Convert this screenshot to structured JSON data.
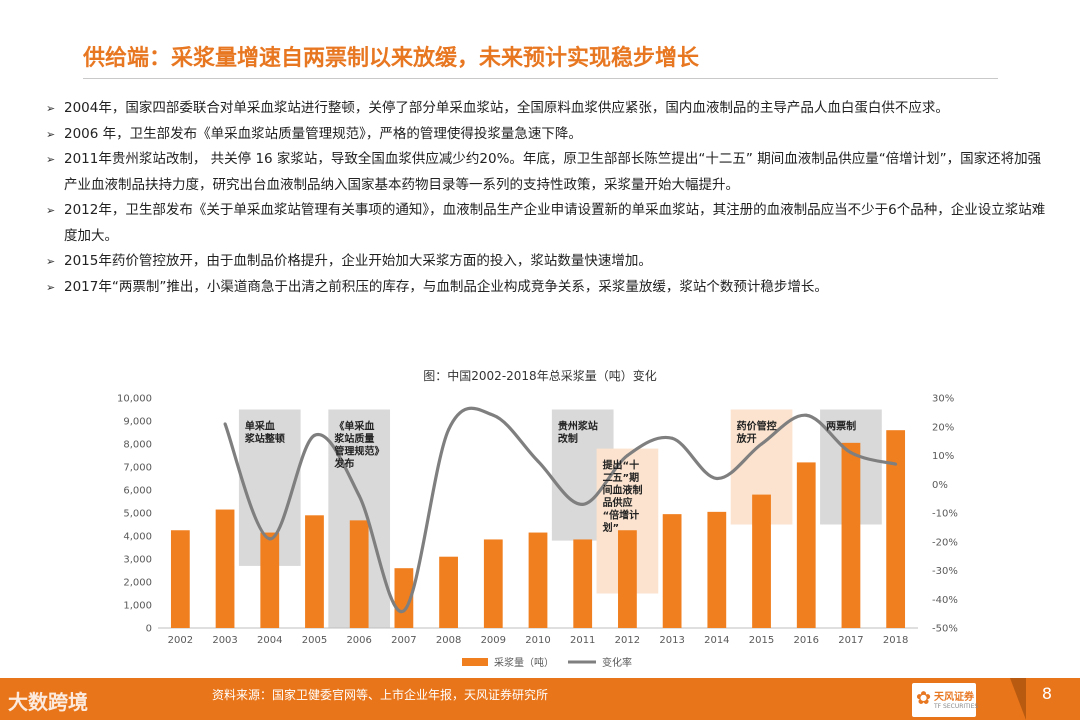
{
  "slide": {
    "title": "供给端：采浆量增速自两票制以来放缓，未来预计实现稳步增长",
    "page_number": "8",
    "source": "资料来源：国家卫健委官网等、上市企业年报，天风证券研究所",
    "watermark": "大数跨境",
    "logo_name": "天风证券",
    "logo_en": "TF SECURITIES"
  },
  "bullets": [
    {
      "marker": "➢",
      "text": "2004年，国家四部委联合对单采血浆站进行整顿，关停了部分单采血浆站，全国原料血浆供应紧张，国内血液制品的主导产品人血白蛋白供不应求。"
    },
    {
      "marker": "➢",
      "text": "2006 年，卫生部发布《单采血浆站质量管理规范》，严格的管理使得投浆量急速下降。"
    },
    {
      "marker": "➢",
      "text": "2011年贵州浆站改制， 共关停 16 家浆站，导致全国血浆供应减少约20%。年底，原卫生部部长陈竺提出“十二五” 期间血液制品供应量“倍增计划”，国家还将加强产业血液制品扶持力度，研究出台血液制品纳入国家基本药物目录等一系列的支持性政策，采浆量开始大幅提升。"
    },
    {
      "marker": "➢",
      "text": "2012年，卫生部发布《关于单采血浆站管理有关事项的通知》，血液制品生产企业申请设置新的单采血浆站，其注册的血液制品应当不少于6个品种，企业设立浆站难度加大。"
    },
    {
      "marker": "➢",
      "text": "2015年药价管控放开，由于血制品价格提升，企业开始加大采浆方面的投入，浆站数量快速增加。"
    },
    {
      "marker": "➢",
      "text": "2017年“两票制”推出，小渠道商急于出清之前积压的库存，与血制品企业构成竞争关系，采浆量放缓，浆站个数预计稳步增长。"
    }
  ],
  "chart_data": {
    "type": "bar",
    "title": "图：中国2002-2018年总采浆量（吨）变化",
    "categories": [
      "2002",
      "2003",
      "2004",
      "2005",
      "2006",
      "2007",
      "2008",
      "2009",
      "2010",
      "2011",
      "2012",
      "2013",
      "2014",
      "2015",
      "2016",
      "2017",
      "2018"
    ],
    "series": [
      {
        "name": "采浆量（吨）",
        "type": "bar",
        "axis": "left",
        "color": "#f07f1f",
        "values": [
          4250,
          5150,
          4150,
          4900,
          4680,
          2600,
          3100,
          3850,
          4150,
          3850,
          4250,
          4950,
          5050,
          5800,
          7200,
          8050,
          8600
        ]
      },
      {
        "name": "变化率",
        "type": "line",
        "axis": "right",
        "color": "#7f7f7f",
        "values": [
          null,
          21,
          -19,
          17,
          -4,
          -44,
          19,
          24,
          8,
          -7,
          10,
          16,
          2,
          14,
          24,
          11,
          7
        ]
      }
    ],
    "y_left": {
      "min": 0,
      "max": 10000,
      "ticks": [
        "0",
        "1,000",
        "2,000",
        "3,000",
        "4,000",
        "5,000",
        "6,000",
        "7,000",
        "8,000",
        "9,000",
        "10,000"
      ]
    },
    "y_right": {
      "min": -50,
      "max": 30,
      "ticks": [
        "-50%",
        "-40%",
        "-30%",
        "-20%",
        "-10%",
        "0%",
        "10%",
        "20%",
        "30%"
      ]
    },
    "annotations": [
      {
        "text": "单采血浆站整顿",
        "lines": [
          "单采血",
          "浆站整顿"
        ],
        "year": "2004",
        "y_top": 9500,
        "y_bottom": 2700,
        "fill": "#d9d9d9"
      },
      {
        "text": "《单采血浆站质量管理规范》发布",
        "lines": [
          "《单采血",
          "浆站质量",
          "管理规范》",
          "发布"
        ],
        "year": "2006",
        "y_top": 9500,
        "y_bottom": 0,
        "fill": "#d9d9d9"
      },
      {
        "text": "贵州浆站改制",
        "lines": [
          "贵州浆站",
          "改制"
        ],
        "year": "2011",
        "y_top": 9500,
        "y_bottom": 3800,
        "fill": "#d9d9d9"
      },
      {
        "text": "提出“十二五”期间血液制品供应“倍增计划”",
        "lines": [
          "提出“十",
          "二五”期",
          "间血液制",
          "品供应",
          "“倍增计",
          "划”"
        ],
        "year": "2012",
        "y_top": 7800,
        "y_bottom": 1500,
        "fill": "#fbe3cf"
      },
      {
        "text": "药价管控放开",
        "lines": [
          "药价管控",
          "放开"
        ],
        "year": "2015",
        "y_top": 9500,
        "y_bottom": 4500,
        "fill": "#fbe3cf"
      },
      {
        "text": "两票制",
        "lines": [
          "两票制"
        ],
        "year": "2017",
        "y_top": 9500,
        "y_bottom": 4500,
        "fill": "#d9d9d9"
      }
    ],
    "legend": {
      "position": "bottom",
      "entries": [
        "采浆量（吨）",
        "变化率"
      ]
    }
  }
}
